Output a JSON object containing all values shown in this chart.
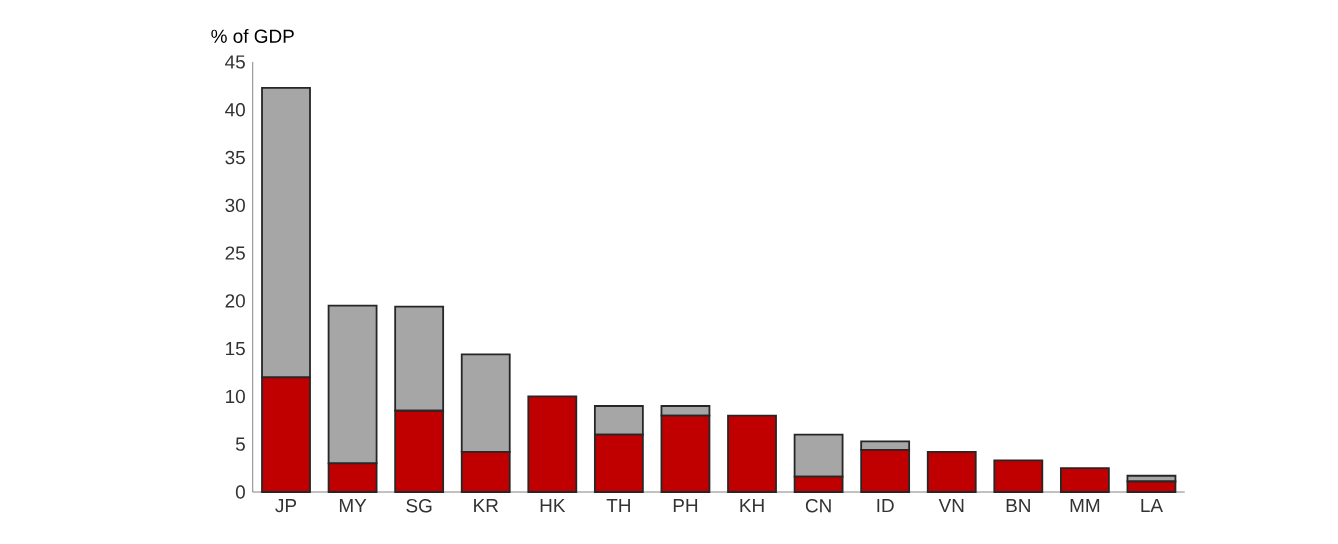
{
  "chart_data": {
    "type": "bar",
    "stacked": true,
    "ylabel": "% of GDP",
    "categories": [
      "JP",
      "MY",
      "SG",
      "KR",
      "HK",
      "TH",
      "PH",
      "KH",
      "CN",
      "ID",
      "VN",
      "BN",
      "MM",
      "LA"
    ],
    "series": [
      {
        "color": "#c00000",
        "values": [
          12,
          3,
          8.5,
          4.2,
          10,
          6,
          8,
          8,
          1.6,
          4.4,
          4.2,
          3.3,
          2.5,
          1.1
        ]
      },
      {
        "color": "#a6a6a6",
        "values": [
          30.3,
          16.5,
          10.9,
          10.2,
          0,
          3,
          1,
          0,
          4.4,
          0.9,
          0,
          0,
          0,
          0.6
        ]
      }
    ],
    "ylim": [
      0,
      45
    ],
    "yticks": [
      0,
      5,
      10,
      15,
      20,
      25,
      30,
      35,
      40,
      45
    ]
  }
}
